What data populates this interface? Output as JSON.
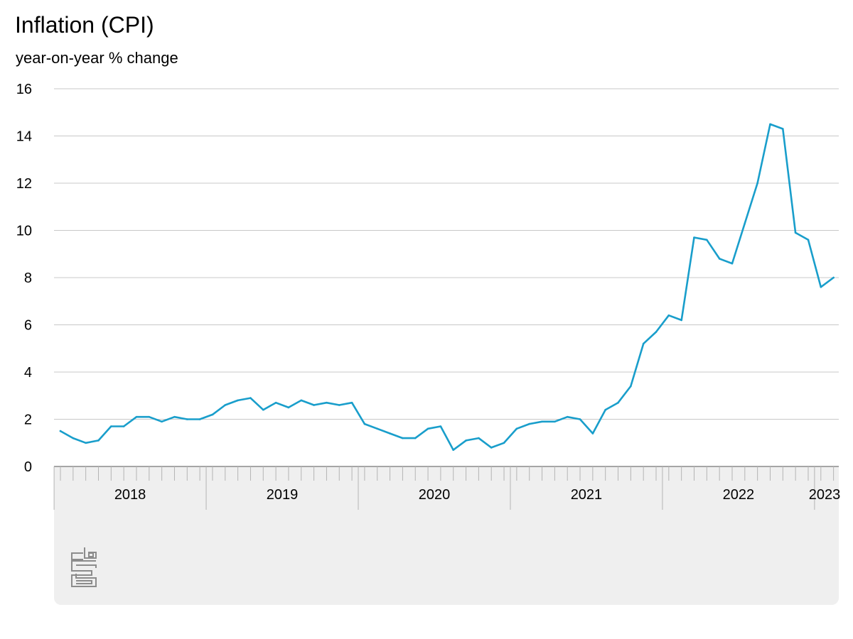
{
  "chart_data": {
    "type": "line",
    "title": "Inflation (CPI)",
    "subtitle": "year-on-year % change",
    "ylim": [
      0,
      16
    ],
    "y_ticks": [
      0,
      2,
      4,
      6,
      8,
      10,
      12,
      14,
      16
    ],
    "x_start": "2018-01",
    "x_end": "2023-02",
    "year_labels": [
      "2018",
      "2019",
      "2020",
      "2021",
      "2022",
      "2023"
    ],
    "grid": true,
    "color": "#199ecb",
    "series": [
      {
        "x": [
          "2018-01",
          "2018-02",
          "2018-03",
          "2018-04",
          "2018-05",
          "2018-06",
          "2018-07",
          "2018-08",
          "2018-09",
          "2018-10",
          "2018-11",
          "2018-12",
          "2019-01",
          "2019-02",
          "2019-03",
          "2019-04",
          "2019-05",
          "2019-06",
          "2019-07",
          "2019-08",
          "2019-09",
          "2019-10",
          "2019-11",
          "2019-12",
          "2020-01",
          "2020-02",
          "2020-03",
          "2020-04",
          "2020-05",
          "2020-06",
          "2020-07",
          "2020-08",
          "2020-09",
          "2020-10",
          "2020-11",
          "2020-12",
          "2021-01",
          "2021-02",
          "2021-03",
          "2021-04",
          "2021-05",
          "2021-06",
          "2021-07",
          "2021-08",
          "2021-09",
          "2021-10",
          "2021-11",
          "2021-12",
          "2022-01",
          "2022-02",
          "2022-03",
          "2022-04",
          "2022-05",
          "2022-06",
          "2022-07",
          "2022-08",
          "2022-09",
          "2022-10",
          "2022-11",
          "2022-12",
          "2023-01",
          "2023-02"
        ],
        "values": [
          1.5,
          1.2,
          1.0,
          1.1,
          1.7,
          1.7,
          2.1,
          2.1,
          1.9,
          2.1,
          2.0,
          2.0,
          2.2,
          2.6,
          2.8,
          2.9,
          2.4,
          2.7,
          2.5,
          2.8,
          2.6,
          2.7,
          2.6,
          2.7,
          1.8,
          1.6,
          1.4,
          1.2,
          1.2,
          1.6,
          1.7,
          0.7,
          1.1,
          1.2,
          0.8,
          1.0,
          1.6,
          1.8,
          1.9,
          1.9,
          2.1,
          2.0,
          1.4,
          2.4,
          2.7,
          3.4,
          5.2,
          5.7,
          6.4,
          6.2,
          9.7,
          9.6,
          8.8,
          8.6,
          10.3,
          12.0,
          14.5,
          14.3,
          9.9,
          9.6,
          7.6,
          8.0
        ]
      }
    ]
  }
}
